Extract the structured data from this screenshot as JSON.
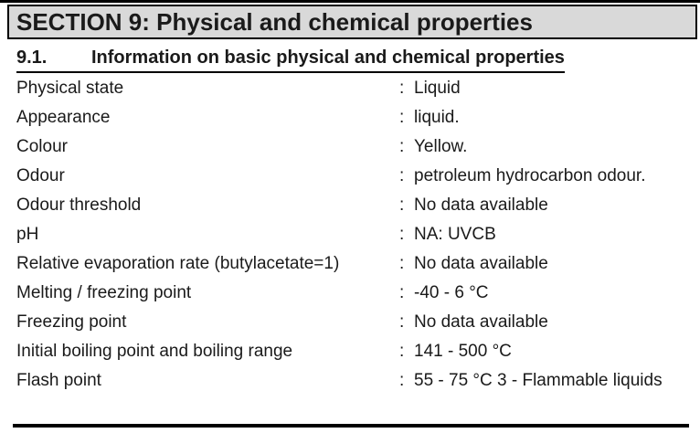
{
  "section_header": "SECTION 9: Physical and chemical properties",
  "subsection": {
    "number": "9.1.",
    "title": "Information on basic physical and chemical properties"
  },
  "properties": [
    {
      "label": "Physical state",
      "separator": ":",
      "value": "Liquid"
    },
    {
      "label": "Appearance",
      "separator": ":",
      "value": "liquid."
    },
    {
      "label": "Colour",
      "separator": ":",
      "value": "Yellow."
    },
    {
      "label": "Odour",
      "separator": ":",
      "value": "petroleum hydrocarbon odour."
    },
    {
      "label": "Odour threshold",
      "separator": ":",
      "value": "No data available"
    },
    {
      "label": "pH",
      "separator": ":",
      "value": "NA: UVCB"
    },
    {
      "label": "Relative evaporation rate (butylacetate=1)",
      "separator": ":",
      "value": "No data available"
    },
    {
      "label": "Melting / freezing point",
      "separator": ":",
      "value": "-40 - 6 °C"
    },
    {
      "label": "Freezing point",
      "separator": ":",
      "value": "No data available"
    },
    {
      "label": "Initial boiling point and boiling range",
      "separator": ":",
      "value": "141 - 500 °C"
    },
    {
      "label": "Flash point",
      "separator": ":",
      "value": "55 - 75 °C 3 - Flammable liquids"
    }
  ],
  "colors": {
    "header_background": "#d9d9d9",
    "border": "#000000",
    "text": "#1a1a1a",
    "page_background": "#ffffff"
  }
}
